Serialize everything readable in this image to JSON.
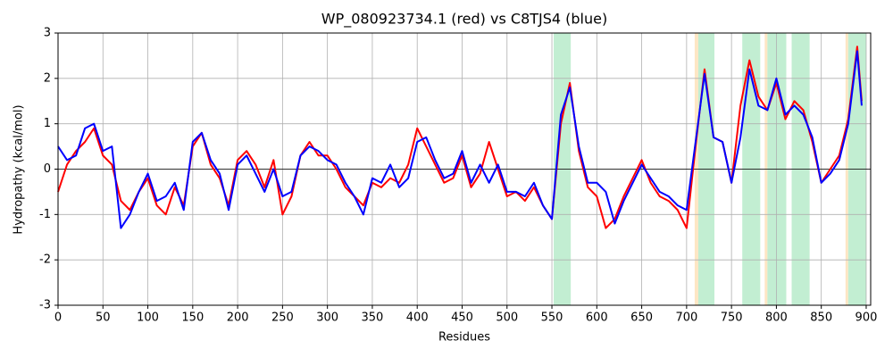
{
  "chart_data": {
    "type": "line",
    "title": "WP_080923734.1 (red) vs C8TJS4 (blue)",
    "x_label": "Residues",
    "y_label": "Hydropathy (kcal/mol)",
    "x": [
      0,
      10,
      20,
      30,
      40,
      50,
      60,
      70,
      80,
      90,
      100,
      110,
      120,
      130,
      140,
      150,
      160,
      170,
      180,
      190,
      200,
      210,
      220,
      230,
      240,
      250,
      260,
      270,
      280,
      290,
      300,
      310,
      320,
      330,
      340,
      350,
      360,
      370,
      380,
      390,
      400,
      410,
      420,
      430,
      440,
      450,
      460,
      470,
      480,
      490,
      500,
      510,
      520,
      530,
      540,
      550,
      560,
      570,
      580,
      590,
      600,
      610,
      620,
      630,
      640,
      650,
      660,
      670,
      680,
      690,
      700,
      710,
      720,
      730,
      740,
      750,
      760,
      770,
      780,
      790,
      800,
      810,
      820,
      830,
      840,
      850,
      860,
      870,
      880,
      890,
      895
    ],
    "series": [
      {
        "name": "WP_080923734.1",
        "color": "#ff0000",
        "values": [
          -0.5,
          0.1,
          0.4,
          0.6,
          0.9,
          0.3,
          0.1,
          -0.7,
          -0.9,
          -0.5,
          -0.2,
          -0.8,
          -1.0,
          -0.4,
          -0.8,
          0.5,
          0.8,
          0.1,
          -0.2,
          -0.8,
          0.2,
          0.4,
          0.1,
          -0.4,
          0.2,
          -1.0,
          -0.6,
          0.3,
          0.6,
          0.3,
          0.3,
          0.0,
          -0.4,
          -0.6,
          -0.8,
          -0.3,
          -0.4,
          -0.2,
          -0.3,
          0.1,
          0.9,
          0.5,
          0.1,
          -0.3,
          -0.2,
          0.3,
          -0.4,
          -0.1,
          0.6,
          0.0,
          -0.6,
          -0.5,
          -0.7,
          -0.4,
          -0.8,
          -1.1,
          1.0,
          1.9,
          0.4,
          -0.4,
          -0.6,
          -1.3,
          -1.1,
          -0.6,
          -0.2,
          0.2,
          -0.3,
          -0.6,
          -0.7,
          -0.9,
          -1.3,
          0.5,
          2.2,
          0.7,
          0.6,
          -0.3,
          1.4,
          2.4,
          1.6,
          1.3,
          1.9,
          1.1,
          1.5,
          1.3,
          0.6,
          -0.3,
          0.0,
          0.3,
          1.1,
          2.7,
          1.5
        ]
      },
      {
        "name": "C8TJS4",
        "color": "#0000ff",
        "values": [
          0.5,
          0.2,
          0.3,
          0.9,
          1.0,
          0.4,
          0.5,
          -1.3,
          -1.0,
          -0.5,
          -0.1,
          -0.7,
          -0.6,
          -0.3,
          -0.9,
          0.6,
          0.8,
          0.2,
          -0.1,
          -0.9,
          0.1,
          0.3,
          -0.1,
          -0.5,
          0.0,
          -0.6,
          -0.5,
          0.3,
          0.5,
          0.4,
          0.2,
          0.1,
          -0.3,
          -0.6,
          -1.0,
          -0.2,
          -0.3,
          0.1,
          -0.4,
          -0.2,
          0.6,
          0.7,
          0.2,
          -0.2,
          -0.1,
          0.4,
          -0.3,
          0.1,
          -0.3,
          0.1,
          -0.5,
          -0.5,
          -0.6,
          -0.3,
          -0.8,
          -1.1,
          1.2,
          1.8,
          0.5,
          -0.3,
          -0.3,
          -0.5,
          -1.2,
          -0.7,
          -0.3,
          0.1,
          -0.2,
          -0.5,
          -0.6,
          -0.8,
          -0.9,
          0.6,
          2.1,
          0.7,
          0.6,
          -0.3,
          0.7,
          2.2,
          1.4,
          1.3,
          2.0,
          1.2,
          1.4,
          1.2,
          0.7,
          -0.3,
          -0.1,
          0.2,
          1.0,
          2.6,
          1.4
        ]
      }
    ],
    "regions": [
      {
        "start": 552,
        "end": 571,
        "color": "#c2eed2"
      },
      {
        "start": 709,
        "end": 713,
        "color": "#fde6c4"
      },
      {
        "start": 713,
        "end": 731,
        "color": "#c2eed2"
      },
      {
        "start": 762,
        "end": 782,
        "color": "#c2eed2"
      },
      {
        "start": 787,
        "end": 790,
        "color": "#fde6c4"
      },
      {
        "start": 790,
        "end": 811,
        "color": "#c2eed2"
      },
      {
        "start": 817,
        "end": 837,
        "color": "#c2eed2"
      },
      {
        "start": 877,
        "end": 880,
        "color": "#fde6c4"
      },
      {
        "start": 880,
        "end": 900,
        "color": "#c2eed2"
      }
    ],
    "hline": 0,
    "xlim": [
      0,
      905
    ],
    "ylim": [
      -3,
      3
    ],
    "xticks": [
      0,
      50,
      100,
      150,
      200,
      250,
      300,
      350,
      400,
      450,
      500,
      550,
      600,
      650,
      700,
      750,
      800,
      850,
      900
    ],
    "yticks": [
      -3,
      -2,
      -1,
      0,
      1,
      2,
      3
    ],
    "grid": true
  }
}
